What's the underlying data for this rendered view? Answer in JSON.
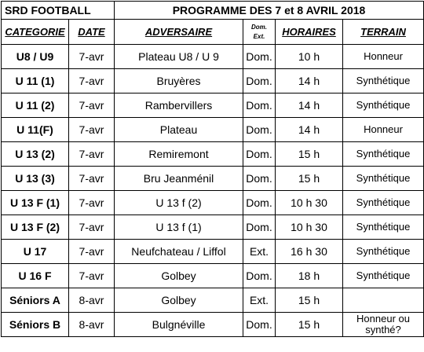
{
  "title": {
    "left": "SRD FOOTBALL",
    "right": "PROGRAMME DES 7 et 8 AVRIL 2018"
  },
  "table": {
    "headers": [
      "CATEGORIE",
      "DATE",
      "ADVERSAIRE",
      [
        "Dom.",
        "Ext."
      ],
      "HORAIRES",
      "TERRAIN"
    ],
    "rows": [
      [
        "U8 / U9",
        "7-avr",
        "Plateau U8 / U 9",
        "Dom.",
        "10 h",
        "Honneur"
      ],
      [
        "U 11 (1)",
        "7-avr",
        "Bruyères",
        "Dom.",
        "14 h",
        "Synthétique"
      ],
      [
        "U 11 (2)",
        "7-avr",
        "Rambervillers",
        "Dom.",
        "14 h",
        "Synthétique"
      ],
      [
        "U 11(F)",
        "7-avr",
        "Plateau",
        "Dom.",
        "14 h",
        "Honneur"
      ],
      [
        "U 13 (2)",
        "7-avr",
        "Remiremont",
        "Dom.",
        "15 h",
        "Synthétique"
      ],
      [
        "U 13 (3)",
        "7-avr",
        "Bru Jeanménil",
        "Dom.",
        "15 h",
        "Synthétique"
      ],
      [
        "U 13 F (1)",
        "7-avr",
        "U 13 f (2)",
        "Dom.",
        "10 h 30",
        "Synthétique"
      ],
      [
        "U 13 F (2)",
        "7-avr",
        "U 13 f (1)",
        "Dom.",
        "10 h 30",
        "Synthétique"
      ],
      [
        "U 17",
        "7-avr",
        "Neufchateau / Liffol",
        "Ext.",
        "16 h 30",
        "Synthétique"
      ],
      [
        "U 16 F",
        "7-avr",
        "Golbey",
        "Dom.",
        "18 h",
        "Synthétique"
      ],
      [
        "Séniors A",
        "8-avr",
        "Golbey",
        "Ext.",
        "15 h",
        null
      ],
      [
        "Séniors B",
        "8-avr",
        "Bulgnéville",
        "Dom.",
        "15 h",
        "Honneur ou synthé?"
      ]
    ]
  }
}
